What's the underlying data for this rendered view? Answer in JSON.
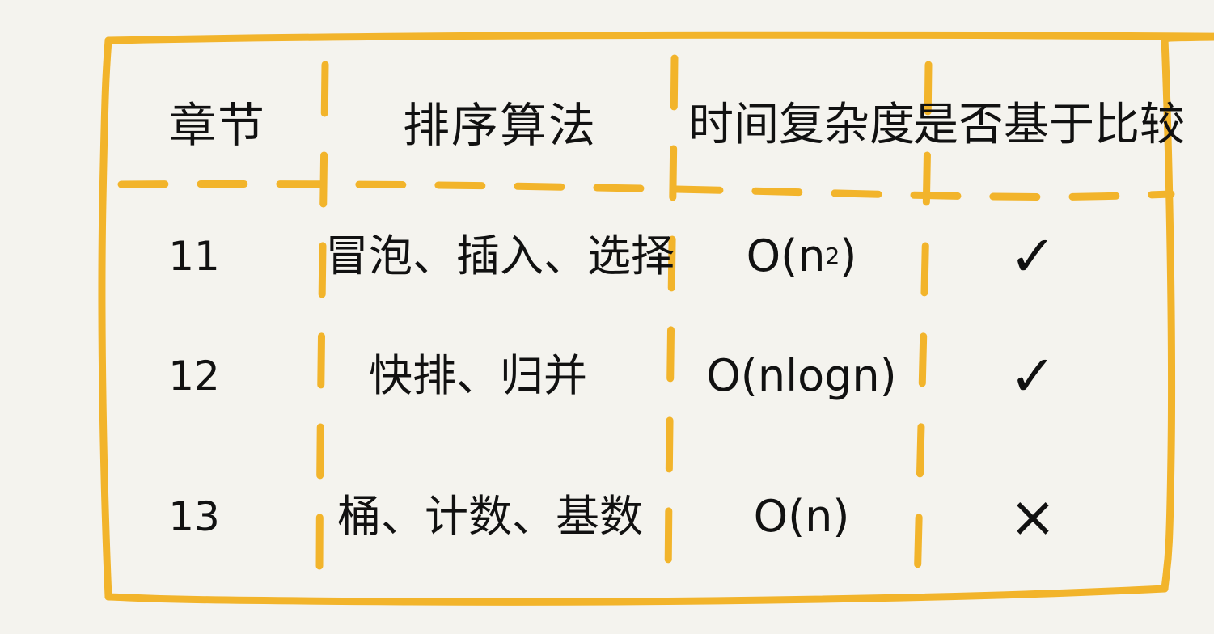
{
  "table": {
    "headers": {
      "chapter": "章节",
      "algorithm": "排序算法",
      "complexity": "时间复杂度",
      "comparison": "是否基于比较"
    },
    "rows": [
      {
        "chapter": "11",
        "algorithm": "冒泡、插入、选择",
        "complexity_base": "O(n",
        "complexity_sup": "2",
        "complexity_tail": ")",
        "comparison": "✓"
      },
      {
        "chapter": "12",
        "algorithm": "快排、归并",
        "complexity_base": "O(nlogn)",
        "complexity_sup": "",
        "complexity_tail": "",
        "comparison": "✓"
      },
      {
        "chapter": "13",
        "algorithm": "桶、计数、基数",
        "complexity_base": "O(n)",
        "complexity_sup": "",
        "complexity_tail": "",
        "comparison": "×"
      }
    ]
  },
  "colors": {
    "line": "#f2b42b",
    "ink": "#111111",
    "paper": "#f4f3ee"
  }
}
